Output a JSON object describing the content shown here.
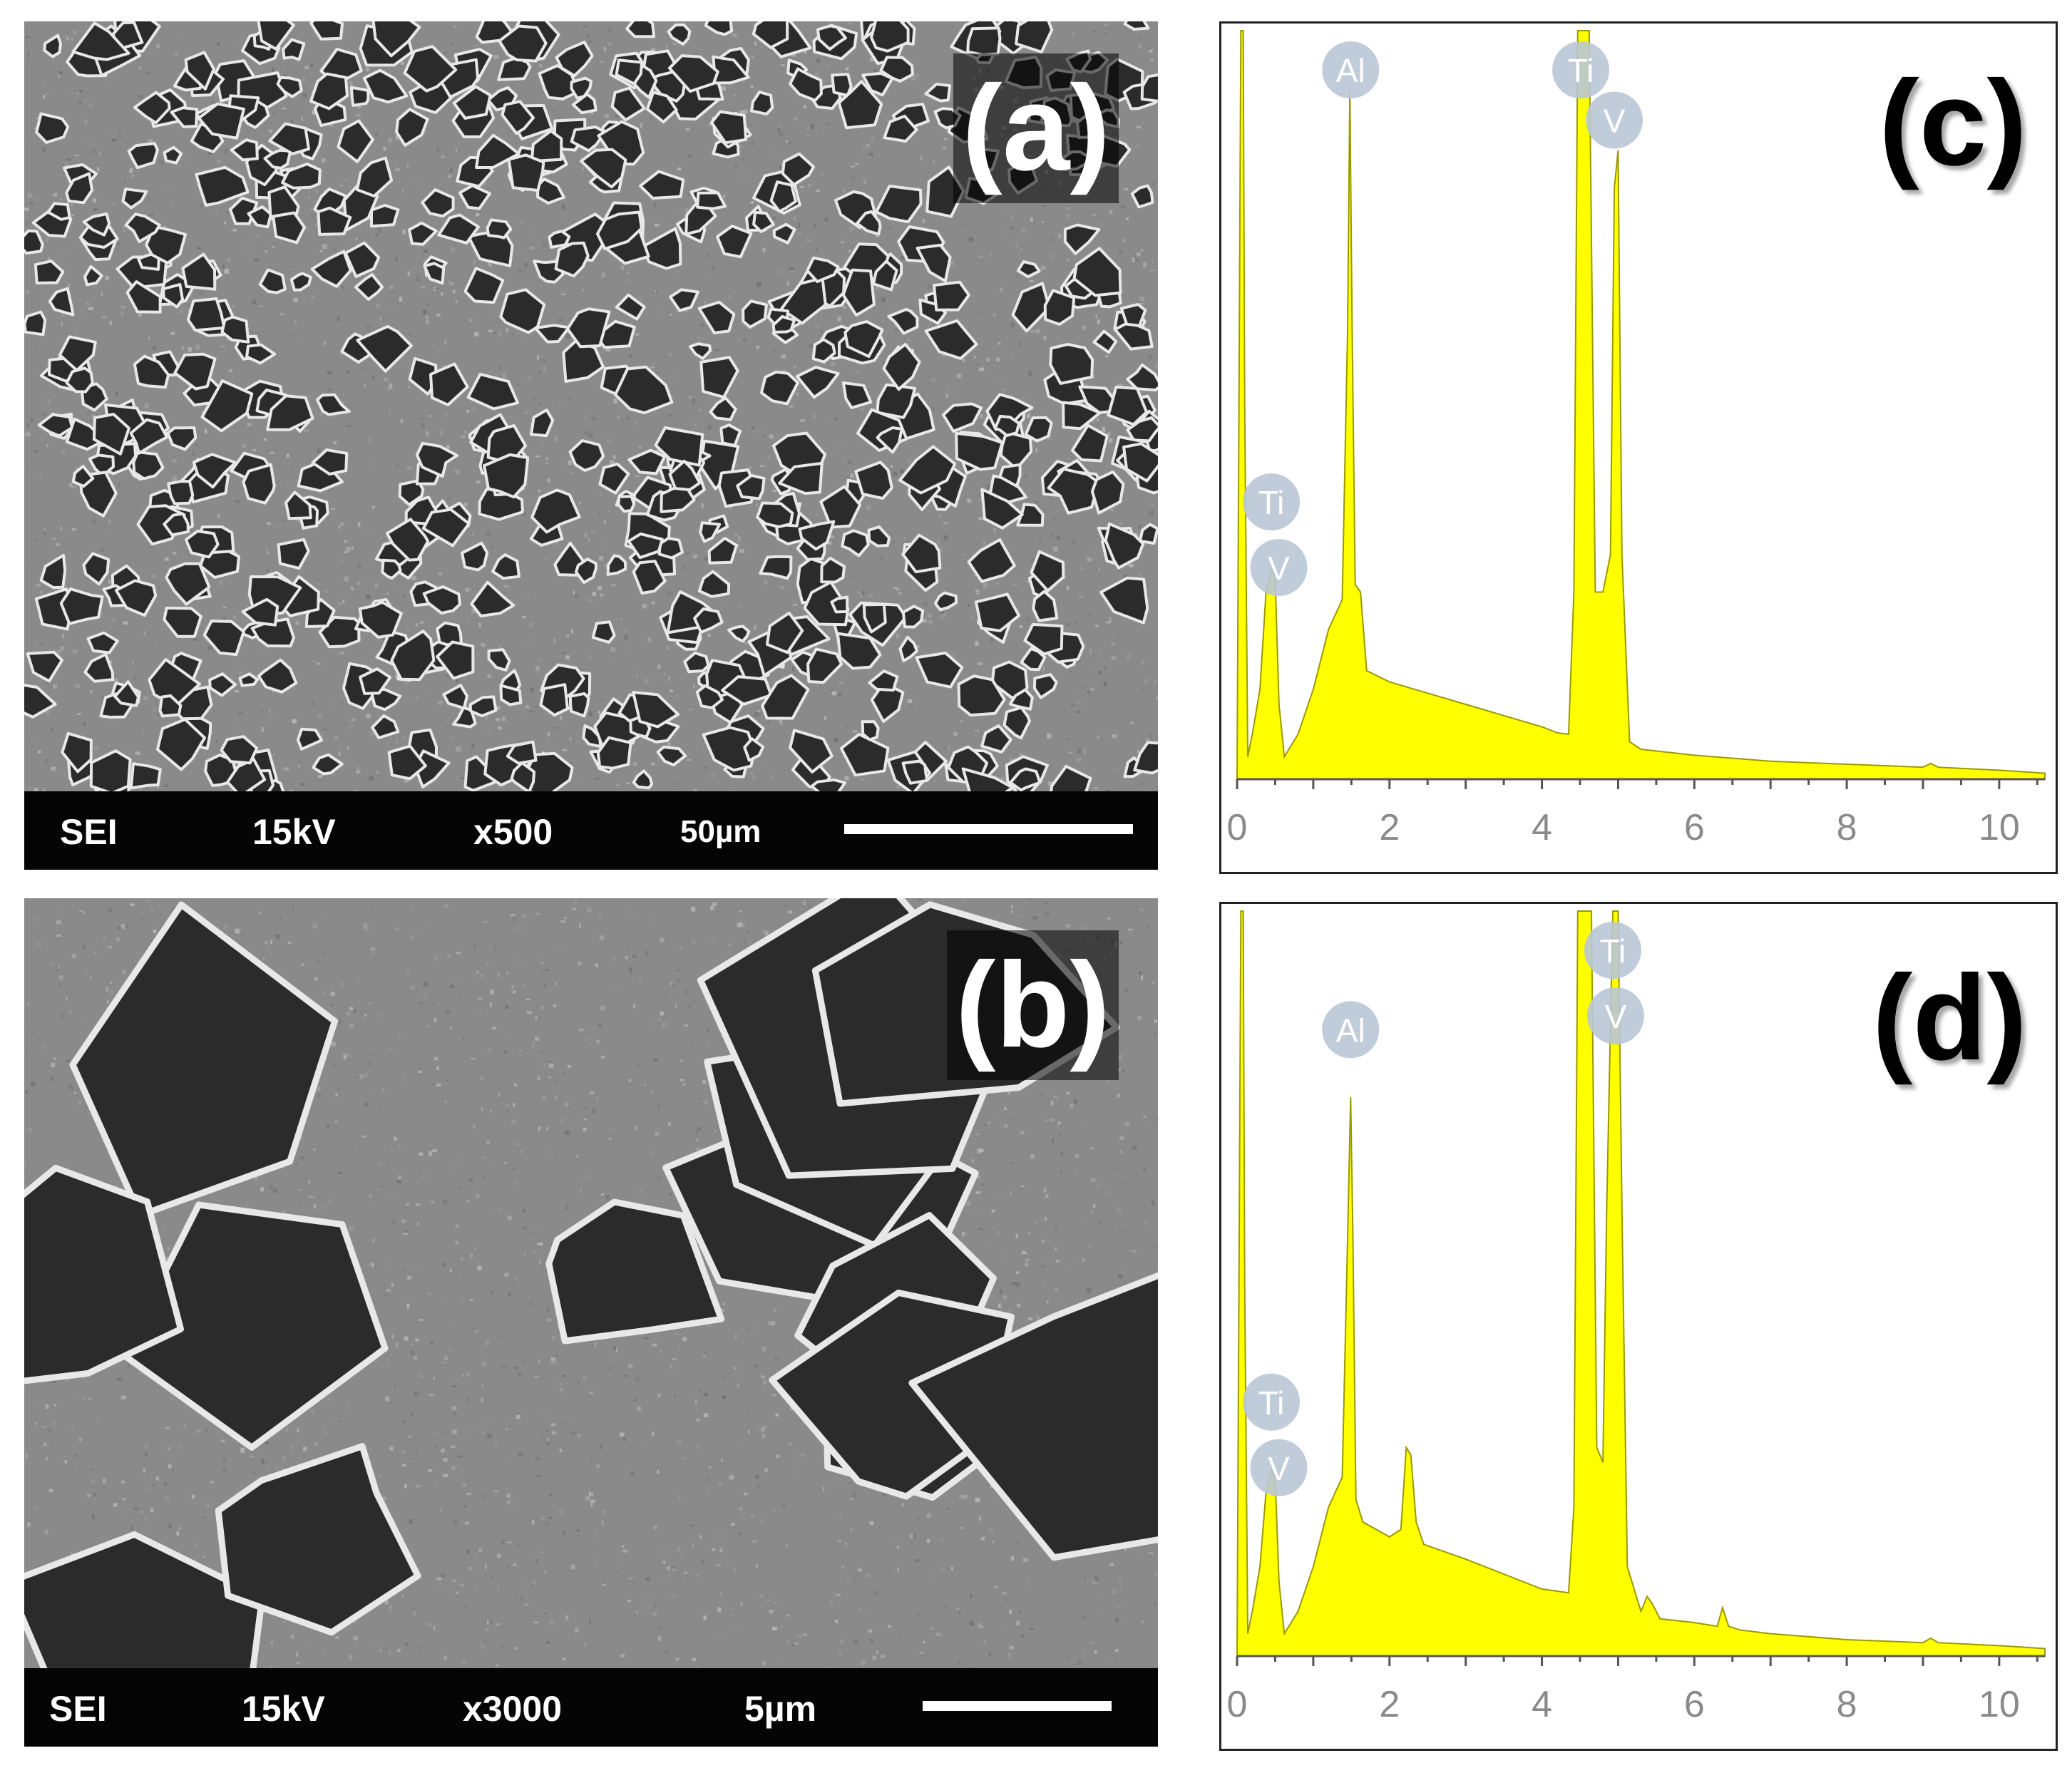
{
  "panels": {
    "a": {
      "label": "(a)",
      "info_bar": {
        "mode": "SEI",
        "voltage": "15kV",
        "magnification": "x500",
        "scale": "50µm"
      }
    },
    "b": {
      "label": "(b)",
      "info_bar": {
        "mode": "SEI",
        "voltage": "15kV",
        "magnification": "x3000",
        "scale": "5µm"
      }
    },
    "c": {
      "label": "(c)"
    },
    "d": {
      "label": "(d)"
    }
  },
  "colors": {
    "spectrum_fill": "#ffff00",
    "spectrum_line": "#9a9a00",
    "element_badge": "#b9c6d6",
    "sem_bar": "#050505",
    "sem_background": "#2e2e2e"
  },
  "chart_data": [
    {
      "type": "area",
      "panel": "(c)",
      "title": "",
      "xlabel": "",
      "ylabel": "",
      "xlim": [
        0,
        10.6
      ],
      "ylim": [
        0,
        100
      ],
      "xticks": [
        "0",
        "2",
        "4",
        "6",
        "8",
        "10"
      ],
      "x": [
        0,
        0.05,
        0.08,
        0.1,
        0.14,
        0.2,
        0.3,
        0.38,
        0.45,
        0.5,
        0.55,
        0.62,
        0.8,
        1.0,
        1.2,
        1.38,
        1.45,
        1.48,
        1.51,
        1.55,
        1.62,
        1.7,
        2.0,
        2.5,
        3.0,
        3.5,
        4.0,
        4.2,
        4.35,
        4.42,
        4.47,
        4.52,
        4.62,
        4.7,
        4.8,
        4.9,
        4.95,
        5.0,
        5.05,
        5.15,
        5.3,
        6.0,
        7.0,
        8.0,
        9.0,
        9.1,
        9.2,
        10.0,
        10.6
      ],
      "values": [
        0,
        100,
        100,
        50,
        3,
        6,
        12,
        25,
        28,
        27,
        10,
        3,
        6,
        12,
        20,
        24,
        60,
        92,
        60,
        26,
        25,
        14.5,
        13,
        11.5,
        10,
        8.5,
        7,
        6.2,
        6,
        25,
        100,
        100,
        100,
        25,
        25,
        30,
        79,
        84,
        30,
        5,
        4,
        3.2,
        2.4,
        2,
        1.6,
        2.1,
        1.6,
        1.2,
        0.8
      ],
      "peak_labels": [
        {
          "element": "Al",
          "x": 1.49
        },
        {
          "element": "Ti",
          "x": 4.51
        },
        {
          "element": "V",
          "x": 4.95
        },
        {
          "element": "Ti",
          "x": 0.45
        },
        {
          "element": "V",
          "x": 0.51
        }
      ]
    },
    {
      "type": "area",
      "panel": "(d)",
      "title": "",
      "xlabel": "",
      "ylabel": "",
      "xlim": [
        0,
        10.6
      ],
      "ylim": [
        0,
        100
      ],
      "xticks": [
        "0",
        "2",
        "4",
        "6",
        "8",
        "10"
      ],
      "x": [
        0,
        0.05,
        0.08,
        0.1,
        0.14,
        0.2,
        0.3,
        0.38,
        0.45,
        0.5,
        0.55,
        0.62,
        0.8,
        1.0,
        1.2,
        1.38,
        1.45,
        1.49,
        1.52,
        1.56,
        1.65,
        2.0,
        2.15,
        2.22,
        2.28,
        2.35,
        2.45,
        3.0,
        3.5,
        4.0,
        4.35,
        4.42,
        4.47,
        4.55,
        4.65,
        4.72,
        4.8,
        4.85,
        4.93,
        5.0,
        5.05,
        5.12,
        5.3,
        5.38,
        5.45,
        5.55,
        6.0,
        6.3,
        6.37,
        6.45,
        6.6,
        7.0,
        8.0,
        9.0,
        9.1,
        9.2,
        10.0,
        10.6
      ],
      "values": [
        0,
        100,
        100,
        50,
        3,
        6,
        12,
        22,
        25,
        24,
        10,
        3,
        6,
        12,
        20,
        24,
        56,
        75,
        56,
        21,
        18,
        16,
        17,
        28,
        27,
        18,
        15,
        13,
        11,
        9,
        8.5,
        20,
        100,
        100,
        100,
        28,
        26,
        60,
        100,
        100,
        60,
        12,
        6,
        8,
        7,
        5,
        4.5,
        4,
        6.5,
        4,
        3.5,
        3,
        2.2,
        1.8,
        2.4,
        1.8,
        1.4,
        1.0
      ],
      "peak_labels": [
        {
          "element": "Al",
          "x": 1.49
        },
        {
          "element": "Ti",
          "x": 4.93
        },
        {
          "element": "V",
          "x": 4.93
        },
        {
          "element": "Ti",
          "x": 0.45
        },
        {
          "element": "V",
          "x": 0.51
        }
      ]
    }
  ]
}
